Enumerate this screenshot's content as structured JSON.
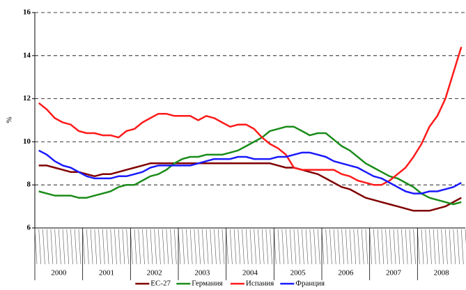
{
  "chart_data": {
    "type": "line",
    "y_label": "%",
    "categories": [
      null,
      null,
      null,
      null,
      null,
      null,
      null,
      null,
      null,
      null,
      null,
      null,
      null,
      null,
      null,
      null,
      null,
      null,
      null,
      null,
      null,
      null,
      null,
      null,
      null,
      null,
      null,
      null,
      null,
      null,
      null,
      null,
      null,
      null,
      null,
      null,
      null,
      null,
      null,
      null,
      null,
      null,
      null,
      null,
      null,
      null,
      null,
      null,
      null,
      null,
      null,
      null,
      null,
      null
    ],
    "year_groups": [
      "2000",
      "2001",
      "2002",
      "2003",
      "2004",
      "2005",
      "2006",
      "2007",
      "2008"
    ],
    "ylim": [
      6,
      16
    ],
    "yticks": [
      6,
      8,
      10,
      12,
      14,
      16
    ],
    "grid": true,
    "legend": "bottom",
    "series": [
      {
        "name": "EC-27",
        "color": "#800000",
        "values": [
          8.9,
          8.9,
          8.8,
          8.7,
          8.6,
          8.6,
          8.5,
          8.4,
          8.5,
          8.5,
          8.6,
          8.7,
          8.8,
          8.9,
          9.0,
          9.0,
          9.0,
          9.0,
          9.0,
          9.0,
          9.0,
          9.0,
          9.0,
          9.0,
          9.0,
          9.0,
          9.0,
          9.0,
          9.0,
          9.0,
          8.9,
          8.8,
          8.8,
          8.7,
          8.6,
          8.5,
          8.3,
          8.1,
          7.9,
          7.8,
          7.6,
          7.4,
          7.3,
          7.2,
          7.1,
          7.0,
          6.9,
          6.8,
          6.8,
          6.8,
          6.9,
          7.0,
          7.2,
          7.4
        ]
      },
      {
        "name": "Германия",
        "color": "#1a8c1a",
        "values": [
          7.7,
          7.6,
          7.5,
          7.5,
          7.5,
          7.4,
          7.4,
          7.5,
          7.6,
          7.7,
          7.9,
          8.0,
          8.0,
          8.2,
          8.4,
          8.5,
          8.7,
          9.0,
          9.2,
          9.3,
          9.3,
          9.4,
          9.4,
          9.4,
          9.5,
          9.6,
          9.8,
          10.0,
          10.2,
          10.5,
          10.6,
          10.7,
          10.7,
          10.5,
          10.3,
          10.4,
          10.4,
          10.1,
          9.8,
          9.6,
          9.3,
          9.0,
          8.8,
          8.6,
          8.4,
          8.3,
          8.1,
          7.9,
          7.6,
          7.4,
          7.3,
          7.2,
          7.1,
          7.2
        ]
      },
      {
        "name": "Испания",
        "color": "#ff1a1a",
        "values": [
          11.8,
          11.5,
          11.1,
          10.9,
          10.8,
          10.5,
          10.4,
          10.4,
          10.3,
          10.3,
          10.2,
          10.5,
          10.6,
          10.9,
          11.1,
          11.3,
          11.3,
          11.2,
          11.2,
          11.2,
          11.0,
          11.2,
          11.1,
          10.9,
          10.7,
          10.8,
          10.8,
          10.6,
          10.2,
          9.9,
          9.7,
          9.4,
          8.8,
          8.7,
          8.7,
          8.7,
          8.7,
          8.7,
          8.5,
          8.4,
          8.2,
          8.1,
          8.0,
          8.0,
          8.2,
          8.5,
          8.8,
          9.3,
          9.9,
          10.7,
          11.2,
          12.0,
          13.2,
          14.4
        ]
      },
      {
        "name": "Франция",
        "color": "#1a1aff",
        "values": [
          9.6,
          9.4,
          9.1,
          8.9,
          8.8,
          8.6,
          8.4,
          8.3,
          8.3,
          8.3,
          8.4,
          8.4,
          8.5,
          8.6,
          8.8,
          8.9,
          8.9,
          8.9,
          8.9,
          8.9,
          9.0,
          9.1,
          9.2,
          9.2,
          9.2,
          9.3,
          9.3,
          9.2,
          9.2,
          9.2,
          9.3,
          9.3,
          9.4,
          9.5,
          9.5,
          9.4,
          9.3,
          9.1,
          9.0,
          8.9,
          8.8,
          8.6,
          8.4,
          8.3,
          8.1,
          7.9,
          7.7,
          7.6,
          7.6,
          7.7,
          7.7,
          7.8,
          7.9,
          8.1
        ]
      }
    ]
  }
}
